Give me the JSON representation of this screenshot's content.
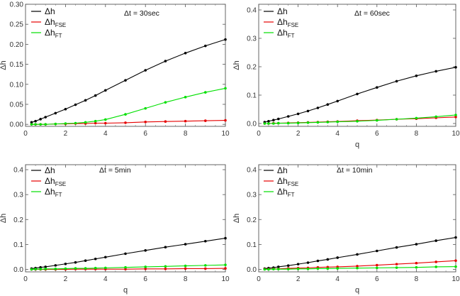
{
  "chart_data": [
    {
      "type": "line",
      "annotation": "Δt = 30sec",
      "xlabel": "",
      "ylabel": "Δh",
      "xlim": [
        0,
        10
      ],
      "ylim": [
        -0.005,
        0.3
      ],
      "xticks": [
        "0",
        "2",
        "4",
        "6",
        "8",
        "10"
      ],
      "yticks": [
        "0.00",
        "0.05",
        "0.10",
        "0.15",
        "0.20",
        "0.25",
        "0.30"
      ],
      "ytick_values": [
        0,
        0.05,
        0.1,
        0.15,
        0.2,
        0.25,
        0.3
      ],
      "legend_position": "top-left",
      "x": [
        0.3,
        0.5,
        0.75,
        1,
        1.5,
        2,
        2.5,
        3,
        3.5,
        4,
        5,
        6,
        7,
        8,
        9,
        10
      ],
      "series": [
        {
          "name": "Δh",
          "sub": "",
          "color": "#000000",
          "values": [
            0.005,
            0.008,
            0.013,
            0.018,
            0.028,
            0.038,
            0.049,
            0.06,
            0.072,
            0.085,
            0.11,
            0.135,
            0.158,
            0.178,
            0.196,
            0.212
          ]
        },
        {
          "name": "Δh",
          "sub": "FSE",
          "color": "#e60000",
          "values": [
            0.0,
            0.0,
            0.0,
            0.0,
            0.001,
            0.001,
            0.002,
            0.002,
            0.003,
            0.003,
            0.004,
            0.006,
            0.007,
            0.008,
            0.009,
            0.01
          ]
        },
        {
          "name": "Δh",
          "sub": "FT",
          "color": "#00e000",
          "values": [
            0.0,
            0.0,
            0.0,
            0.0,
            0.001,
            0.002,
            0.003,
            0.005,
            0.008,
            0.012,
            0.025,
            0.04,
            0.055,
            0.068,
            0.08,
            0.09
          ]
        }
      ]
    },
    {
      "type": "line",
      "annotation": "Δt = 60sec",
      "xlabel": "q",
      "ylabel": "Δh",
      "xlim": [
        0,
        10
      ],
      "ylim": [
        -0.01,
        0.42
      ],
      "xticks": [
        "0",
        "2",
        "4",
        "6",
        "8",
        "10"
      ],
      "yticks": [
        "0.0",
        "0.1",
        "0.2",
        "0.3",
        "0.4"
      ],
      "ytick_values": [
        0,
        0.1,
        0.2,
        0.3,
        0.4
      ],
      "legend_position": "top-left",
      "x": [
        0.3,
        0.5,
        0.75,
        1,
        1.5,
        2,
        2.5,
        3,
        3.5,
        4,
        5,
        6,
        7,
        8,
        9,
        10
      ],
      "series": [
        {
          "name": "Δh",
          "sub": "",
          "color": "#000000",
          "values": [
            0.005,
            0.008,
            0.012,
            0.016,
            0.025,
            0.034,
            0.044,
            0.055,
            0.067,
            0.079,
            0.104,
            0.127,
            0.149,
            0.168,
            0.184,
            0.198
          ]
        },
        {
          "name": "Δh",
          "sub": "FSE",
          "color": "#e60000",
          "values": [
            0.0,
            0.0,
            0.001,
            0.001,
            0.002,
            0.003,
            0.004,
            0.005,
            0.006,
            0.007,
            0.01,
            0.012,
            0.015,
            0.017,
            0.02,
            0.023
          ]
        },
        {
          "name": "Δh",
          "sub": "FT",
          "color": "#00e000",
          "values": [
            0.0,
            0.0,
            0.0,
            0.001,
            0.001,
            0.002,
            0.003,
            0.004,
            0.005,
            0.006,
            0.008,
            0.011,
            0.015,
            0.019,
            0.024,
            0.03
          ]
        }
      ]
    },
    {
      "type": "line",
      "annotation": "Δt = 5min",
      "xlabel": "q",
      "ylabel": "Δh",
      "xlim": [
        0,
        10
      ],
      "ylim": [
        -0.01,
        0.42
      ],
      "xticks": [
        "0",
        "2",
        "4",
        "6",
        "8",
        "10"
      ],
      "yticks": [
        "0.0",
        "0.1",
        "0.2",
        "0.3",
        "0.4"
      ],
      "ytick_values": [
        0,
        0.1,
        0.2,
        0.3,
        0.4
      ],
      "legend_position": "top-left",
      "x": [
        0.3,
        0.5,
        0.75,
        1,
        1.5,
        2,
        2.5,
        3,
        3.5,
        4,
        5,
        6,
        7,
        8,
        9,
        10
      ],
      "series": [
        {
          "name": "Δh",
          "sub": "",
          "color": "#000000",
          "values": [
            0.003,
            0.005,
            0.008,
            0.01,
            0.016,
            0.022,
            0.028,
            0.035,
            0.042,
            0.049,
            0.063,
            0.076,
            0.089,
            0.101,
            0.113,
            0.125
          ]
        },
        {
          "name": "Δh",
          "sub": "FSE",
          "color": "#e60000",
          "values": [
            0.0,
            0.0,
            0.0,
            0.0,
            0.0,
            0.0,
            0.001,
            0.001,
            0.001,
            0.001,
            0.001,
            0.002,
            0.002,
            0.003,
            0.003,
            0.004
          ]
        },
        {
          "name": "Δh",
          "sub": "FT",
          "color": "#00e000",
          "values": [
            0.0,
            0.001,
            0.001,
            0.002,
            0.002,
            0.003,
            0.004,
            0.004,
            0.005,
            0.006,
            0.008,
            0.01,
            0.012,
            0.014,
            0.016,
            0.018
          ]
        }
      ]
    },
    {
      "type": "line",
      "annotation": "Δt = 10min",
      "xlabel": "q",
      "ylabel": "Δh",
      "xlim": [
        0,
        10
      ],
      "ylim": [
        -0.01,
        0.42
      ],
      "xticks": [
        "0",
        "2",
        "4",
        "6",
        "8",
        "10"
      ],
      "yticks": [
        "0.0",
        "0.1",
        "0.2",
        "0.3",
        "0.4"
      ],
      "ytick_values": [
        0,
        0.1,
        0.2,
        0.3,
        0.4
      ],
      "legend_position": "top-left",
      "x": [
        0.3,
        0.5,
        0.75,
        1,
        1.5,
        2,
        2.5,
        3,
        3.5,
        4,
        5,
        6,
        7,
        8,
        9,
        10
      ],
      "series": [
        {
          "name": "Δh",
          "sub": "",
          "color": "#000000",
          "values": [
            0.003,
            0.005,
            0.007,
            0.01,
            0.015,
            0.021,
            0.027,
            0.034,
            0.04,
            0.047,
            0.06,
            0.074,
            0.088,
            0.101,
            0.115,
            0.128
          ]
        },
        {
          "name": "Δh",
          "sub": "FSE",
          "color": "#e60000",
          "values": [
            0.001,
            0.001,
            0.002,
            0.002,
            0.004,
            0.005,
            0.006,
            0.008,
            0.009,
            0.01,
            0.013,
            0.017,
            0.021,
            0.025,
            0.03,
            0.035
          ]
        },
        {
          "name": "Δh",
          "sub": "FT",
          "color": "#00e000",
          "values": [
            0.0,
            0.0,
            0.001,
            0.001,
            0.001,
            0.002,
            0.002,
            0.003,
            0.003,
            0.004,
            0.005,
            0.006,
            0.007,
            0.008,
            0.01,
            0.011
          ]
        }
      ]
    }
  ]
}
